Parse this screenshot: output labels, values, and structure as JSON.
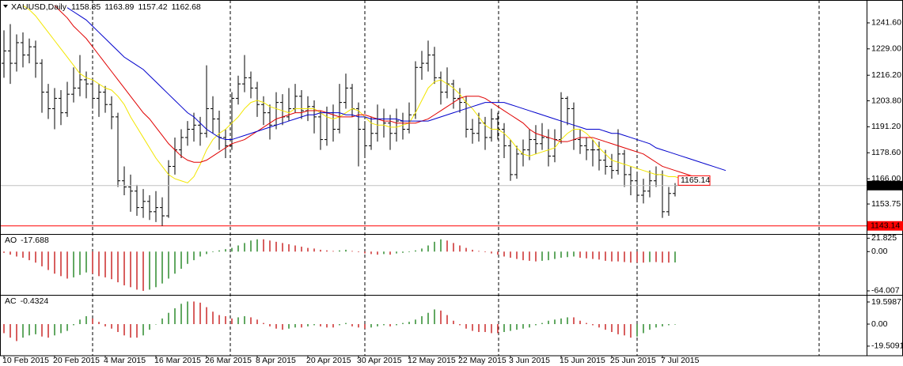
{
  "chart_data": [
    {
      "type": "ohlc",
      "title": "XAUUSD,Daily",
      "bar_color": "#000000",
      "open": [
        1222,
        1228,
        1222,
        1232,
        1226,
        1230,
        1222,
        1208,
        1200,
        1205,
        1198,
        1207,
        1210,
        1214,
        1212,
        1205,
        1208,
        1202,
        1196,
        1165,
        1162,
        1160,
        1152,
        1155,
        1150,
        1152,
        1148,
        1172,
        1180,
        1186,
        1190,
        1192,
        1188,
        1200,
        1195,
        1186,
        1182,
        1205,
        1212,
        1215,
        1210,
        1202,
        1198,
        1192,
        1203,
        1196,
        1200,
        1206,
        1199,
        1201,
        1196,
        1185,
        1198,
        1190,
        1203,
        1210,
        1200,
        1190,
        1182,
        1188,
        1195,
        1193,
        1188,
        1194,
        1190,
        1197,
        1220,
        1222,
        1226,
        1215,
        1208,
        1212,
        1205,
        1203,
        1190,
        1188,
        1193,
        1186,
        1195,
        1190,
        1182,
        1168,
        1178,
        1180,
        1185,
        1183,
        1186,
        1177,
        1185,
        1205,
        1200,
        1185,
        1182,
        1180,
        1180,
        1175,
        1172,
        1170,
        1178,
        1168,
        1165,
        1158,
        1160,
        1165,
        1168,
        1150,
        1158.85,
        null,
        null,
        null,
        null,
        null,
        null,
        null,
        null
      ],
      "high": [
        1238,
        1241,
        1236,
        1237,
        1234,
        1233,
        1224,
        1212,
        1210,
        1209,
        1213,
        1220,
        1226,
        1218,
        1215,
        1212,
        1211,
        1206,
        1198,
        1172,
        1168,
        1163,
        1161,
        1158,
        1160,
        1157,
        1175,
        1186,
        1190,
        1194,
        1198,
        1196,
        1221,
        1206,
        1199,
        1190,
        1208,
        1216,
        1226,
        1218,
        1213,
        1206,
        1202,
        1208,
        1207,
        1210,
        1212,
        1209,
        1206,
        1204,
        1199,
        1201,
        1202,
        1212,
        1217,
        1212,
        1203,
        1194,
        1196,
        1202,
        1200,
        1197,
        1200,
        1198,
        1203,
        1223,
        1228,
        1233,
        1230,
        1218,
        1220,
        1214,
        1210,
        1206,
        1195,
        1198,
        1196,
        1200,
        1198,
        1193,
        1185,
        1182,
        1185,
        1190,
        1192,
        1193,
        1190,
        1190,
        1208,
        1206,
        1203,
        1190,
        1186,
        1185,
        1184,
        1180,
        1178,
        1190,
        1180,
        1172,
        1168,
        1166,
        1170,
        1172,
        1170,
        1162,
        1163.89,
        null,
        null,
        null,
        null,
        null,
        null,
        null,
        null
      ],
      "low": [
        1215,
        1212,
        1218,
        1220,
        1222,
        1215,
        1198,
        1195,
        1190,
        1192,
        1196,
        1203,
        1206,
        1205,
        1200,
        1196,
        1198,
        1190,
        1162,
        1158,
        1150,
        1148,
        1147,
        1146,
        1145,
        1143.14,
        1147,
        1168,
        1176,
        1182,
        1184,
        1182,
        1186,
        1188,
        1180,
        1176,
        1180,
        1202,
        1208,
        1205,
        1196,
        1192,
        1185,
        1190,
        1192,
        1194,
        1198,
        1195,
        1194,
        1188,
        1180,
        1182,
        1184,
        1188,
        1200,
        1196,
        1172,
        1176,
        1180,
        1184,
        1186,
        1180,
        1184,
        1185,
        1188,
        1195,
        1214,
        1218,
        1212,
        1202,
        1205,
        1200,
        1198,
        1186,
        1183,
        1184,
        1180,
        1184,
        1185,
        1176,
        1165,
        1166,
        1172,
        1175,
        1178,
        1180,
        1172,
        1174,
        1183,
        1192,
        1180,
        1178,
        1175,
        1172,
        1170,
        1168,
        1166,
        1168,
        1162,
        1158,
        1155,
        1154,
        1157,
        1162,
        1147,
        1148,
        1157.42,
        null,
        null,
        null,
        null,
        null,
        null,
        null,
        null
      ],
      "close": [
        1228,
        1222,
        1232,
        1226,
        1230,
        1222,
        1208,
        1200,
        1205,
        1198,
        1207,
        1210,
        1214,
        1212,
        1205,
        1208,
        1202,
        1196,
        1165,
        1162,
        1160,
        1152,
        1155,
        1150,
        1152,
        1148,
        1172,
        1180,
        1186,
        1190,
        1192,
        1188,
        1200,
        1195,
        1186,
        1182,
        1205,
        1212,
        1215,
        1210,
        1202,
        1198,
        1192,
        1203,
        1196,
        1200,
        1206,
        1199,
        1201,
        1196,
        1185,
        1198,
        1190,
        1203,
        1210,
        1200,
        1190,
        1182,
        1188,
        1195,
        1193,
        1188,
        1194,
        1190,
        1197,
        1220,
        1222,
        1226,
        1215,
        1208,
        1212,
        1205,
        1203,
        1190,
        1188,
        1193,
        1186,
        1195,
        1190,
        1182,
        1168,
        1178,
        1180,
        1185,
        1183,
        1186,
        1177,
        1185,
        1205,
        1200,
        1185,
        1182,
        1180,
        1180,
        1175,
        1172,
        1170,
        1178,
        1168,
        1165,
        1158,
        1160,
        1165,
        1168,
        1150,
        1158.85,
        1162.68,
        null,
        null,
        null,
        null,
        null,
        null,
        null,
        null
      ],
      "series": [
        {
          "color": "#f2e600",
          "values": [
            null,
            null,
            null,
            1250,
            1248,
            1245,
            1241,
            1237,
            1233,
            1229,
            1225,
            1221,
            1217,
            1215,
            1214,
            1212,
            1210,
            1209,
            1206,
            1202,
            1196,
            1191,
            1186,
            1181,
            1176,
            1172,
            1168,
            1166,
            1165,
            1164,
            1167,
            1173,
            1180,
            1185,
            1188,
            1190,
            1193,
            1196,
            1200,
            1203,
            1204,
            1203,
            1201,
            1200,
            1199,
            1198,
            1200,
            1200,
            1200,
            1200,
            1198,
            1196,
            1195,
            1196,
            1198,
            1200,
            1199,
            1196,
            1193,
            1192,
            1192,
            1191,
            1191,
            1192,
            1193,
            1198,
            1204,
            1210,
            1213,
            1214,
            1212,
            1210,
            1207,
            1203,
            1200,
            1196,
            1192,
            1190,
            1190,
            1188,
            1185,
            1181,
            1178,
            1177,
            1178,
            1179,
            1180,
            1181,
            1185,
            1188,
            1190,
            1190,
            1188,
            1185,
            1181,
            1178,
            1175,
            1174,
            1173,
            1172,
            1171,
            1170,
            1169,
            1168,
            1168,
            1167,
            1167,
            1166,
            1166,
            1165,
            null,
            null,
            null,
            null,
            null
          ]
        },
        {
          "color": "#e00000",
          "values": [
            null,
            null,
            null,
            null,
            null,
            null,
            null,
            null,
            1250,
            1247,
            1244,
            1240,
            1237,
            1234,
            1230,
            1226,
            1222,
            1218,
            1214,
            1210,
            1206,
            1202,
            1198,
            1195,
            1191,
            1187,
            1183,
            1180,
            1177,
            1175,
            1174,
            1174,
            1175,
            1177,
            1179,
            1181,
            1183,
            1184,
            1185,
            1187,
            1189,
            1191,
            1193,
            1195,
            1196,
            1197,
            1198,
            1198,
            1199,
            1199,
            1199,
            1198,
            1197,
            1196,
            1196,
            1196,
            1197,
            1197,
            1196,
            1195,
            1194,
            1194,
            1193,
            1193,
            1193,
            1193,
            1194,
            1195,
            1197,
            1199,
            1201,
            1203,
            1205,
            1206,
            1206,
            1206,
            1205,
            1203,
            1201,
            1199,
            1197,
            1195,
            1193,
            1190,
            1188,
            1187,
            1186,
            1185,
            1184,
            1184,
            1185,
            1186,
            1186,
            1186,
            1185,
            1184,
            1183,
            1182,
            1181,
            1180,
            1179,
            1178,
            1176,
            1174,
            1172,
            1171,
            1170,
            1169,
            1168,
            1167,
            1166,
            1165,
            null,
            null,
            null
          ]
        },
        {
          "color": "#0000cc",
          "values": [
            null,
            null,
            null,
            null,
            null,
            null,
            null,
            null,
            null,
            null,
            1249,
            1247,
            1245,
            1243,
            1240,
            1237,
            1234,
            1231,
            1228,
            1225,
            1223,
            1221,
            1219,
            1216,
            1213,
            1210,
            1207,
            1204,
            1201,
            1198,
            1196,
            1193,
            1190,
            1188,
            1186,
            1185,
            1185,
            1186,
            1187,
            1188,
            1189,
            1190,
            1191,
            1192,
            1193,
            1194,
            1195,
            1196,
            1197,
            1197,
            1198,
            1198,
            1198,
            1198,
            1197,
            1197,
            1196,
            1196,
            1195,
            1195,
            1195,
            1195,
            1195,
            1194,
            1194,
            1194,
            1194,
            1194,
            1195,
            1196,
            1197,
            1198,
            1199,
            1200,
            1201,
            1202,
            1203,
            1203,
            1203,
            1203,
            1202,
            1201,
            1200,
            1199,
            1198,
            1197,
            1196,
            1195,
            1194,
            1193,
            1192,
            1191,
            1190,
            1190,
            1190,
            1189,
            1188,
            1188,
            1187,
            1186,
            1185,
            1184,
            1183,
            1181,
            1180,
            1179,
            1178,
            1177,
            1176,
            1175,
            1174,
            1173,
            1172,
            1171,
            1170
          ]
        }
      ],
      "ylim": [
        1139.2,
        1252.7
      ],
      "yticks": [
        {
          "value": 1241.6,
          "label": "1241.60"
        },
        {
          "value": 1229,
          "label": "1229.00"
        },
        {
          "value": 1216.2,
          "label": "1216.20"
        },
        {
          "value": 1203.8,
          "label": "1203.80"
        },
        {
          "value": 1191.2,
          "label": "1191.20"
        },
        {
          "value": 1178.6,
          "label": "1178.60"
        },
        {
          "value": 1166,
          "label": "1166.00"
        },
        {
          "value": 1153.75,
          "label": "1153.75"
        }
      ],
      "hline": {
        "value": 1143.14,
        "color": "#ff0000"
      },
      "price_label": {
        "value": 1165.14,
        "color": "#ff0000"
      }
    },
    {
      "type": "histogram",
      "title": "AO",
      "up_color": "#2e8b2e",
      "down_color": "#cc2a2a",
      "values": [
        -2,
        -5,
        -8,
        -10,
        -14,
        -18,
        -24,
        -30,
        -36,
        -40,
        -44,
        -42,
        -38,
        -34,
        -36,
        -40,
        -42,
        -45,
        -50,
        -55,
        -58,
        -62,
        -64,
        -62,
        -58,
        -52,
        -44,
        -36,
        -28,
        -20,
        -14,
        -8,
        -4,
        -1,
        2,
        4,
        6,
        10,
        14,
        18,
        20,
        20,
        18,
        16,
        14,
        12,
        10,
        8,
        6,
        5,
        3,
        2,
        1,
        2,
        3,
        1,
        -1,
        -3,
        -4,
        -5,
        -4,
        -5,
        -3,
        -2,
        -1,
        2,
        5,
        10,
        16,
        20,
        18,
        14,
        10,
        6,
        3,
        1,
        -1,
        -3,
        -5,
        -8,
        -10,
        -12,
        -14,
        -15,
        -16,
        -15,
        -14,
        -12,
        -10,
        -9,
        -8,
        -10,
        -11,
        -12,
        -13,
        -15,
        -16,
        -16,
        -17,
        -18,
        -18,
        -18,
        -17,
        -17,
        -18,
        -18,
        -17.688,
        null,
        null,
        null,
        null,
        null,
        null,
        null,
        null
      ],
      "ylim": [
        -70.5,
        27.4
      ],
      "yticks": [
        21.825,
        {
          "value": 0,
          "label": "0.00"
        },
        -64.007
      ]
    },
    {
      "type": "histogram",
      "title": "AC",
      "up_color": "#2e8b2e",
      "down_color": "#cc2a2a",
      "values": [
        -8,
        -12,
        -15,
        -12,
        -10,
        -9,
        -11,
        -12,
        -10,
        -8,
        -6,
        -1,
        4,
        7,
        5,
        2,
        -2,
        -4,
        -7,
        -10,
        -12,
        -12,
        -10,
        -5,
        0,
        5,
        10,
        14,
        18,
        20,
        20,
        19,
        15,
        11,
        8,
        7,
        5,
        6,
        7,
        6,
        4,
        1,
        -2,
        -4,
        -5,
        -4,
        -3,
        -3,
        -2,
        -1,
        -2,
        -3,
        -3,
        -1,
        1,
        -2,
        -3,
        -4,
        -3,
        -2,
        -1,
        -2,
        -1,
        1,
        2,
        4,
        7,
        10,
        13,
        12,
        8,
        3,
        -1,
        -4,
        -6,
        -7,
        -7,
        -8,
        -8,
        -7,
        -6,
        -5,
        -4,
        -3,
        -1,
        1,
        3,
        4,
        5,
        6,
        6,
        3,
        1,
        -1,
        -3,
        -5,
        -7,
        -9,
        -10,
        -12,
        -11,
        -8,
        -5,
        -3,
        -2,
        -1,
        -0.4324,
        null,
        null,
        null,
        null,
        null,
        null,
        null,
        null
      ],
      "ylim": [
        -28,
        25.2
      ],
      "yticks": [
        19.5987,
        {
          "value": 0,
          "label": "0.00"
        },
        -19.5091
      ],
      "categories": [
        "10 Feb 2015",
        null,
        null,
        null,
        null,
        null,
        null,
        null,
        "20 Feb 2015",
        null,
        null,
        null,
        null,
        null,
        null,
        null,
        "4 Mar 2015",
        null,
        null,
        null,
        null,
        null,
        null,
        null,
        "16 Mar 2015",
        null,
        null,
        null,
        null,
        null,
        null,
        null,
        "26 Mar 2015",
        null,
        null,
        null,
        null,
        null,
        null,
        null,
        "8 Apr 2015",
        null,
        null,
        null,
        null,
        null,
        null,
        null,
        "20 Apr 2015",
        null,
        null,
        null,
        null,
        null,
        null,
        null,
        "30 Apr 2015",
        null,
        null,
        null,
        null,
        null,
        null,
        null,
        "12 May 2015",
        null,
        null,
        null,
        null,
        null,
        null,
        null,
        "22 May 2015",
        null,
        null,
        null,
        null,
        null,
        null,
        null,
        "3 Jun 2015",
        null,
        null,
        null,
        null,
        null,
        null,
        null,
        "15 Jun 2015",
        null,
        null,
        null,
        null,
        null,
        null,
        null,
        "25 Jun 2015",
        null,
        null,
        null,
        null,
        null,
        null,
        null,
        "7 Jul 2015",
        null,
        null,
        null,
        null,
        null,
        null,
        null,
        null,
        null,
        null
      ]
    }
  ]
}
